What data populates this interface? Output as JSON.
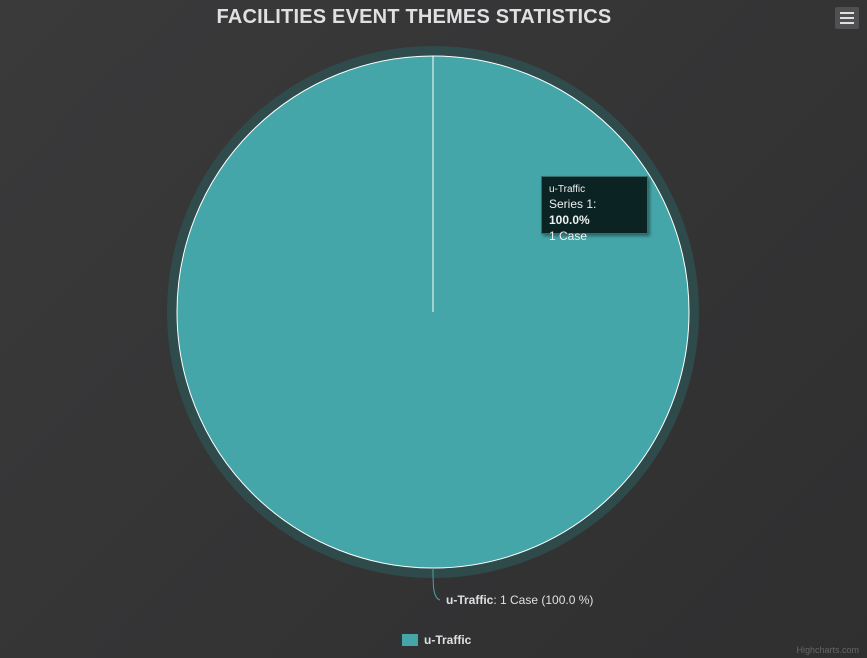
{
  "chart_data": {
    "type": "pie",
    "title": "FACILITIES EVENT THEMES STATISTICS",
    "series": [
      {
        "name": "Series 1",
        "slices": [
          {
            "name": "u-Traffic",
            "value": 1,
            "percent": 100.0,
            "unit": "Case",
            "color": "#44a6a8"
          }
        ]
      }
    ],
    "data_label": {
      "name": "u-Traffic",
      "text": ": 1 Case (100.0 %)"
    },
    "tooltip": {
      "header": "u-Traffic",
      "series_label": "Series 1: ",
      "value_text": "100.0%",
      "count_text": "1 Case"
    },
    "legend": {
      "position": "bottom-center",
      "items": [
        {
          "label": "u-Traffic",
          "color": "#44a6a8"
        }
      ]
    }
  },
  "ui": {
    "menu_icon": "hamburger-menu-icon",
    "credits": "Highcharts.com"
  },
  "colors": {
    "background": "#363637",
    "slice": "#44a6a8",
    "halo": "#2f4f4f",
    "text": "#e0e0e3"
  }
}
